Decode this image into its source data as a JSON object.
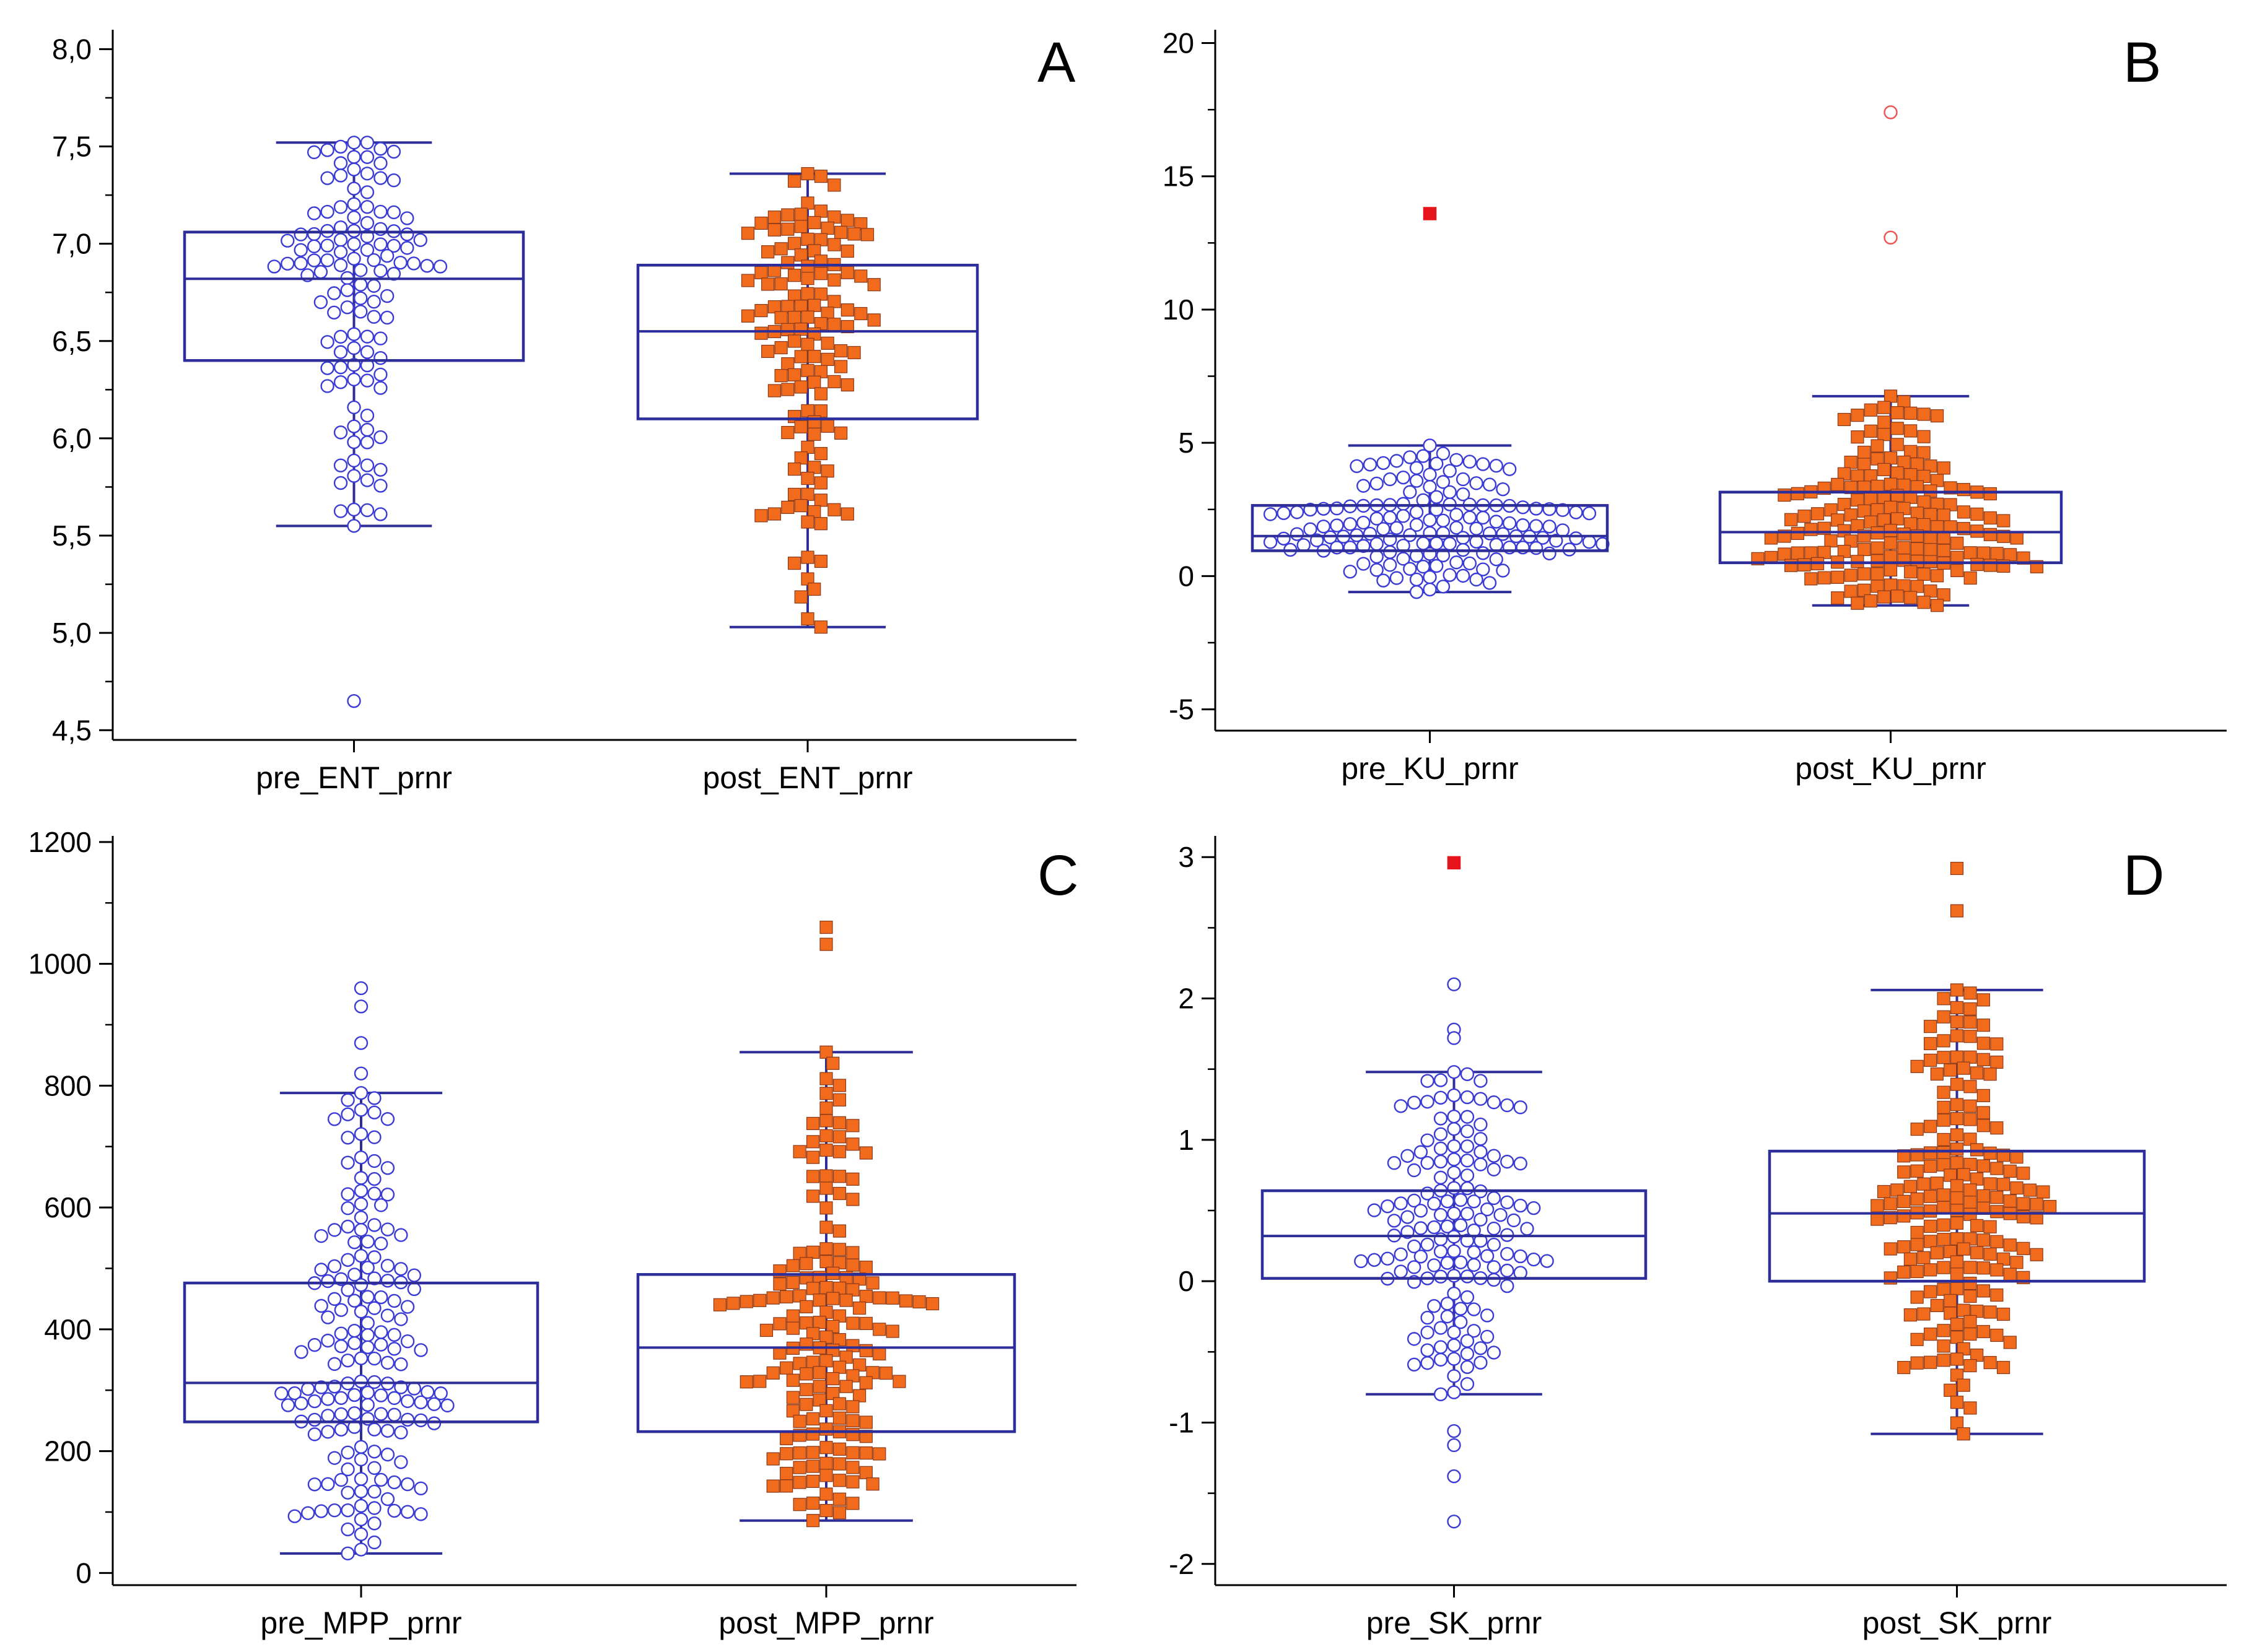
{
  "colors": {
    "box": "#2e2e9a",
    "axis": "#000000",
    "pre_marker_stroke": "#3b3bd6",
    "pre_marker_fill": "#ffffff",
    "post_marker_fill": "#f26a1b",
    "post_marker_stroke": "#8a3a1a",
    "outlier_red": "#e8141b",
    "outlier_ring": "#ef5555"
  },
  "chart_data": [
    {
      "type": "box",
      "panel": "A",
      "title": "",
      "xlabel": "",
      "ylabel": "",
      "ylim": [
        4.45,
        8.1
      ],
      "yticks": [
        4.5,
        5.0,
        5.5,
        6.0,
        6.5,
        7.0,
        7.5,
        8.0
      ],
      "ytick_labels": [
        "4,5",
        "5,0",
        "5,5",
        "6,0",
        "6,5",
        "7,0",
        "7,5",
        "8,0"
      ],
      "minor_step": 0.25,
      "categories": [
        "pre_ENT_prnr",
        "post_ENT_prnr"
      ],
      "boxes": [
        {
          "name": "pre_ENT_prnr",
          "q1": 6.4,
          "median": 6.82,
          "q3": 7.06,
          "whisker_low": 5.55,
          "whisker_high": 7.52,
          "count": 120,
          "seed": 11,
          "outliers": [
            {
              "value": 4.65,
              "style": "ring"
            }
          ]
        },
        {
          "name": "post_ENT_prnr",
          "q1": 6.1,
          "median": 6.55,
          "q3": 6.89,
          "whisker_low": 5.03,
          "whisker_high": 7.36,
          "count": 130,
          "seed": 23,
          "outliers": []
        }
      ]
    },
    {
      "type": "box",
      "panel": "B",
      "title": "",
      "xlabel": "",
      "ylabel": "",
      "ylim": [
        -5.8,
        20.5
      ],
      "yticks": [
        -5,
        0,
        5,
        10,
        15,
        20
      ],
      "ytick_labels": [
        "-5",
        "0",
        "5",
        "10",
        "15",
        "20"
      ],
      "minor_step": 2.5,
      "categories": [
        "pre_KU_prnr",
        "post_KU_prnr"
      ],
      "boxes": [
        {
          "name": "pre_KU_prnr",
          "q1": 0.95,
          "median": 1.5,
          "q3": 2.65,
          "whisker_low": -0.6,
          "whisker_high": 4.9,
          "count": 150,
          "seed": 37,
          "outliers": [
            {
              "value": 13.6,
              "style": "red-square"
            }
          ]
        },
        {
          "name": "post_KU_prnr",
          "q1": 0.5,
          "median": 1.65,
          "q3": 3.15,
          "whisker_low": -1.1,
          "whisker_high": 6.75,
          "count": 170,
          "seed": 41,
          "outliers": [
            {
              "value": 12.7,
              "style": "red-ring"
            },
            {
              "value": 17.4,
              "style": "red-ring"
            }
          ]
        }
      ]
    },
    {
      "type": "box",
      "panel": "C",
      "title": "",
      "xlabel": "",
      "ylabel": "",
      "ylim": [
        -20,
        1210
      ],
      "yticks": [
        0,
        200,
        400,
        600,
        800,
        1000,
        1200
      ],
      "ytick_labels": [
        "0",
        "200",
        "400",
        "600",
        "800",
        "1000",
        "1200"
      ],
      "minor_step": 100,
      "categories": [
        "pre_MPP_prnr",
        "post_MPP_prnr"
      ],
      "boxes": [
        {
          "name": "pre_MPP_prnr",
          "q1": 248,
          "median": 312,
          "q3": 476,
          "whisker_low": 32,
          "whisker_high": 788,
          "count": 170,
          "seed": 53,
          "outliers": [
            {
              "value": 960,
              "style": "ring"
            },
            {
              "value": 930,
              "style": "ring"
            },
            {
              "value": 870,
              "style": "ring"
            },
            {
              "value": 820,
              "style": "ring"
            }
          ]
        },
        {
          "name": "post_MPP_prnr",
          "q1": 232,
          "median": 370,
          "q3": 490,
          "whisker_low": 86,
          "whisker_high": 855,
          "count": 170,
          "seed": 67,
          "outliers": [
            {
              "value": 1060,
              "style": "square"
            },
            {
              "value": 1032,
              "style": "square"
            }
          ]
        }
      ]
    },
    {
      "type": "box",
      "panel": "D",
      "title": "",
      "xlabel": "",
      "ylabel": "",
      "ylim": [
        -2.15,
        3.15
      ],
      "yticks": [
        -2,
        -1,
        0,
        1,
        2,
        3
      ],
      "ytick_labels": [
        "-2",
        "-1",
        "0",
        "1",
        "2",
        "3"
      ],
      "minor_step": 0.5,
      "categories": [
        "pre_SK_prnr",
        "post_SK_prnr"
      ],
      "boxes": [
        {
          "name": "pre_SK_prnr",
          "q1": 0.02,
          "median": 0.32,
          "q3": 0.64,
          "whisker_low": -0.8,
          "whisker_high": 1.48,
          "count": 150,
          "seed": 71,
          "outliers": [
            {
              "value": 2.96,
              "style": "red-square"
            },
            {
              "value": 2.1,
              "style": "ring"
            },
            {
              "value": 1.78,
              "style": "ring"
            },
            {
              "value": 1.72,
              "style": "ring"
            },
            {
              "value": -1.06,
              "style": "ring"
            },
            {
              "value": -1.16,
              "style": "ring"
            },
            {
              "value": -1.38,
              "style": "ring"
            },
            {
              "value": -1.7,
              "style": "ring"
            }
          ]
        },
        {
          "name": "post_SK_prnr",
          "q1": 0.0,
          "median": 0.48,
          "q3": 0.92,
          "whisker_low": -1.08,
          "whisker_high": 2.06,
          "count": 190,
          "seed": 89,
          "outliers": [
            {
              "value": 2.92,
              "style": "square"
            },
            {
              "value": 2.62,
              "style": "square"
            }
          ]
        }
      ]
    }
  ]
}
